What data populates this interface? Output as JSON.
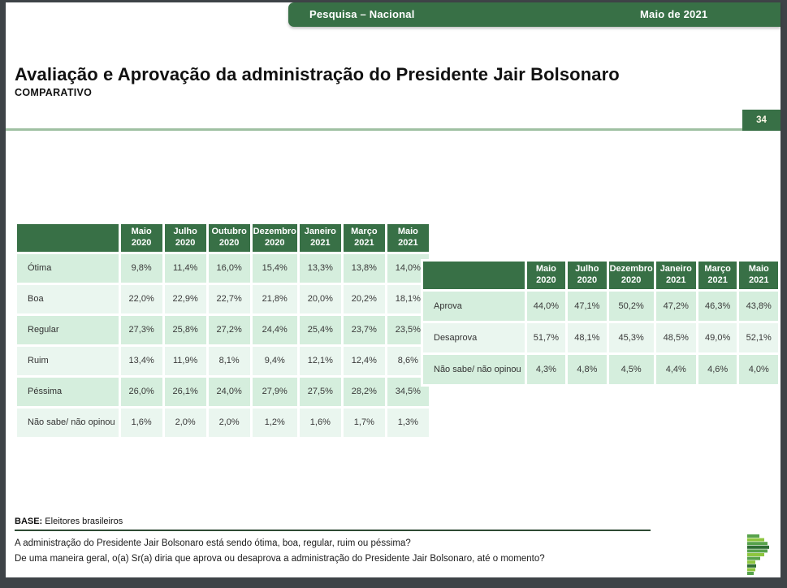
{
  "header": {
    "left_title": "Pesquisa – Nacional",
    "right_title": "Maio de 2021"
  },
  "title": "Avaliação e Aprovação da administração do Presidente Jair Bolsonaro",
  "subtitle": "COMPARATIVO",
  "page_number": "34",
  "tables": {
    "evaluation": {
      "columns": [
        "Maio\n2020",
        "Julho\n2020",
        "Outubro\n2020",
        "Dezembro\n2020",
        "Janeiro\n2021",
        "Março\n2021",
        "Maio\n2021"
      ],
      "rows": [
        {
          "label": "Ótima",
          "values": [
            "9,8%",
            "11,4%",
            "16,0%",
            "15,4%",
            "13,3%",
            "13,8%",
            "14,0%"
          ]
        },
        {
          "label": "Boa",
          "values": [
            "22,0%",
            "22,9%",
            "22,7%",
            "21,8%",
            "20,0%",
            "20,2%",
            "18,1%"
          ]
        },
        {
          "label": "Regular",
          "values": [
            "27,3%",
            "25,8%",
            "27,2%",
            "24,4%",
            "25,4%",
            "23,7%",
            "23,5%"
          ]
        },
        {
          "label": "Ruim",
          "values": [
            "13,4%",
            "11,9%",
            "8,1%",
            "9,4%",
            "12,1%",
            "12,4%",
            "8,6%"
          ]
        },
        {
          "label": "Péssima",
          "values": [
            "26,0%",
            "26,1%",
            "24,0%",
            "27,9%",
            "27,5%",
            "28,2%",
            "34,5%"
          ]
        },
        {
          "label": "Não sabe/  não opinou",
          "values": [
            "1,6%",
            "2,0%",
            "2,0%",
            "1,2%",
            "1,6%",
            "1,7%",
            "1,3%"
          ]
        }
      ]
    },
    "approval": {
      "columns": [
        "Maio\n2020",
        "Julho\n2020",
        "Dezembro\n2020",
        "Janeiro\n2021",
        "Março\n2021",
        "Maio\n2021"
      ],
      "rows": [
        {
          "label": "Aprova",
          "values": [
            "44,0%",
            "47,1%",
            "50,2%",
            "47,2%",
            "46,3%",
            "43,8%"
          ]
        },
        {
          "label": "Desaprova",
          "values": [
            "51,7%",
            "48,1%",
            "45,3%",
            "48,5%",
            "49,0%",
            "52,1%"
          ]
        },
        {
          "label": "Não sabe/  não opinou",
          "values": [
            "4,3%",
            "4,8%",
            "4,5%",
            "4,4%",
            "4,6%",
            "4,0%"
          ]
        }
      ]
    }
  },
  "footer": {
    "base_label": "BASE:",
    "base_text": " Eleitores brasileiros",
    "question1": "A administração do Presidente Jair Bolsonaro está sendo ótima, boa, regular, ruim ou péssima?",
    "question2": "De uma maneira geral, o(a) Sr(a) diria que aprova ou desaprova a administração do Presidente Jair Bolsonaro, até o momento?"
  },
  "icons": {
    "logo": "p-bar-chart-logo"
  },
  "colors": {
    "accent_dark_green": "#387046",
    "row_mint_dark": "#d5eedd",
    "row_mint_light": "#eaf6ef",
    "sage_divider": "#9fc0a2",
    "footer_rule": "#2e4a33",
    "frame": "#3e4347"
  }
}
